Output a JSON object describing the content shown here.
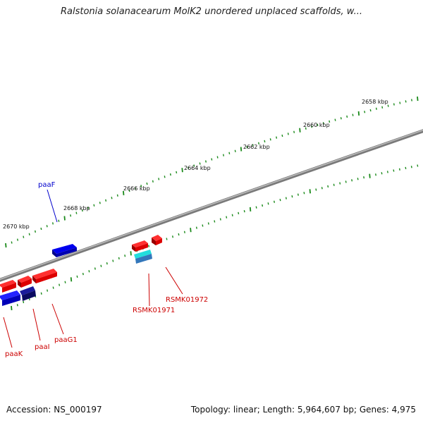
{
  "title": "Ralstonia solanacearum MolK2 unordered unplaced scaffolds, w...",
  "footer": {
    "accession": "Accession: NS_000197",
    "summary": "Topology: linear; Length: 5,964,607 bp; Genes: 4,975"
  },
  "ruler": {
    "tick_labels": [
      "2658 kbp",
      "2660 kbp",
      "2662 kbp",
      "2664 kbp",
      "2666 kbp",
      "2668 kbp",
      "2670 kbp"
    ],
    "tick_color": "#1a8a1a"
  },
  "genes": {
    "forward_color": "#ff0000",
    "reverse_color": "#0000ff",
    "rna_color": "#00cccc",
    "labels": [
      {
        "name": "paaF",
        "color": "#0000cc"
      },
      {
        "name": "RSMK01972",
        "color": "#cc0000"
      },
      {
        "name": "RSMK01971",
        "color": "#cc0000"
      },
      {
        "name": "paaK",
        "color": "#cc0000"
      },
      {
        "name": "paaI",
        "color": "#cc0000"
      },
      {
        "name": "paaG1",
        "color": "#cc0000"
      }
    ]
  }
}
